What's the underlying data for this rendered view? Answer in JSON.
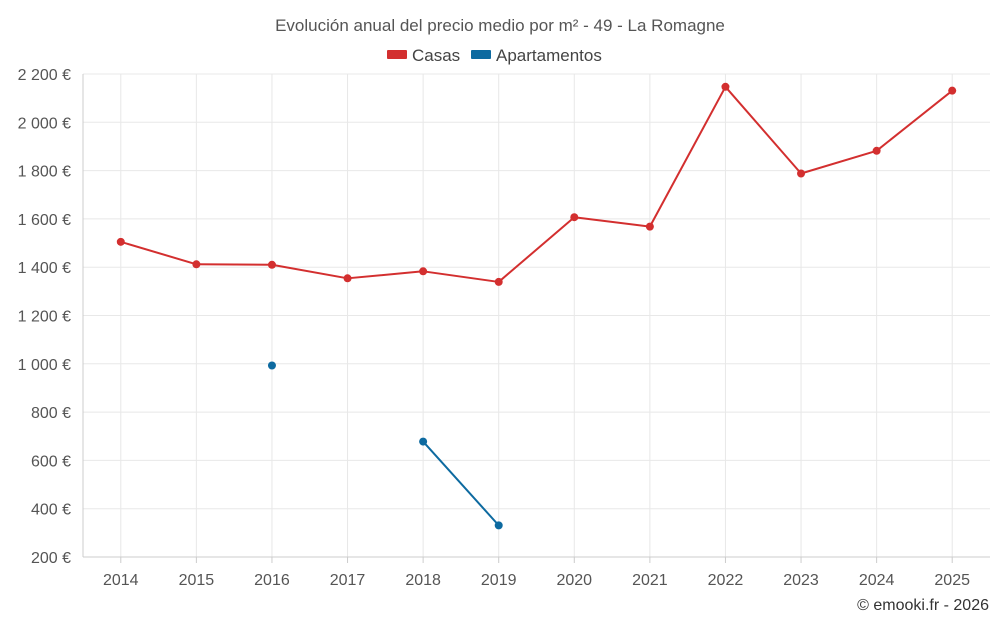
{
  "chart_data": {
    "type": "line",
    "title": "Evolución anual del precio medio por m² - 49 - La Romagne",
    "categories": [
      "2014",
      "2015",
      "2016",
      "2017",
      "2018",
      "2019",
      "2020",
      "2021",
      "2022",
      "2023",
      "2024",
      "2025"
    ],
    "series": [
      {
        "name": "Casas",
        "color": "#d32f2f",
        "values": [
          1505,
          1412,
          1410,
          1354,
          1383,
          1339,
          1607,
          1568,
          2147,
          1788,
          1882,
          2131
        ]
      },
      {
        "name": "Apartamentos",
        "color": "#0d6aa0",
        "values": [
          null,
          null,
          993,
          null,
          678,
          331,
          null,
          null,
          null,
          null,
          null,
          null
        ]
      }
    ],
    "ylim": [
      200,
      2200
    ],
    "yticks": [
      200,
      400,
      600,
      800,
      1000,
      1200,
      1400,
      1600,
      1800,
      2000,
      2200
    ],
    "ytick_labels": [
      "200 €",
      "400 €",
      "600 €",
      "800 €",
      "1 000 €",
      "1 200 €",
      "1 400 €",
      "1 600 €",
      "1 800 €",
      "2 000 €",
      "2 200 €"
    ],
    "xlabel": "",
    "ylabel": "",
    "grid": true,
    "legend_position": "top-center"
  },
  "credit": "© emooki.fr - 2026"
}
